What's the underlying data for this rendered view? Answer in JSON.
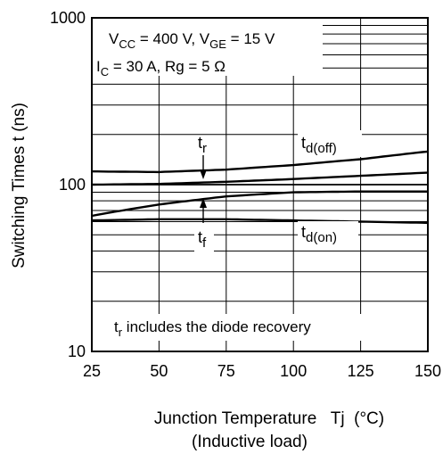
{
  "chart_data": {
    "type": "line",
    "xlabel": "Junction Temperature   Tj  (°C)",
    "xlabel_sub": "(Inductive load)",
    "ylabel": "Switching Times   t  (ns)",
    "xlim": [
      25,
      150
    ],
    "ylim": [
      10,
      1000
    ],
    "y_scale": "log",
    "grid": true,
    "x_ticks": [
      25,
      50,
      75,
      100,
      125,
      150
    ],
    "x_tick_labels": [
      "25",
      "50",
      "75",
      "100",
      "125",
      "150"
    ],
    "y_tick_labels": [
      {
        "value": 10,
        "label": "10"
      },
      {
        "value": 100,
        "label": "100"
      },
      {
        "value": 1000,
        "label": "1000"
      }
    ],
    "conditions": [
      {
        "parts": [
          [
            "V"
          ],
          [
            "CC",
            "sub"
          ],
          [
            " = 400 V, V"
          ],
          [
            "GE",
            "sub"
          ],
          [
            " = 15 V"
          ]
        ]
      },
      {
        "parts": [
          [
            "I"
          ],
          [
            "C",
            "sub"
          ],
          [
            " = 30 A, Rg = 5 Ω"
          ]
        ]
      }
    ],
    "footnote": {
      "parts": [
        [
          "t"
        ],
        [
          "r",
          "sub"
        ],
        [
          " includes the diode recovery"
        ]
      ]
    },
    "series": [
      {
        "name": "td(off)",
        "label_main": "t",
        "label_sub": "d(off)",
        "x": [
          25,
          50,
          75,
          100,
          125,
          150
        ],
        "y": [
          120,
          119,
          123,
          131,
          142,
          158
        ]
      },
      {
        "name": "tr",
        "label_main": "t",
        "label_sub": "r",
        "x": [
          25,
          50,
          75,
          100,
          125,
          150
        ],
        "y": [
          100,
          101,
          104,
          108,
          113,
          118
        ]
      },
      {
        "name": "tf",
        "label_main": "t",
        "label_sub": "f",
        "x": [
          25,
          50,
          75,
          100,
          125,
          150
        ],
        "y": [
          65,
          76,
          85,
          90,
          91,
          91
        ]
      },
      {
        "name": "td(on)",
        "label_main": "t",
        "label_sub": "d(on)",
        "x": [
          25,
          50,
          75,
          100,
          125,
          150
        ],
        "y": [
          61,
          62,
          62,
          61,
          60,
          59
        ]
      }
    ]
  }
}
